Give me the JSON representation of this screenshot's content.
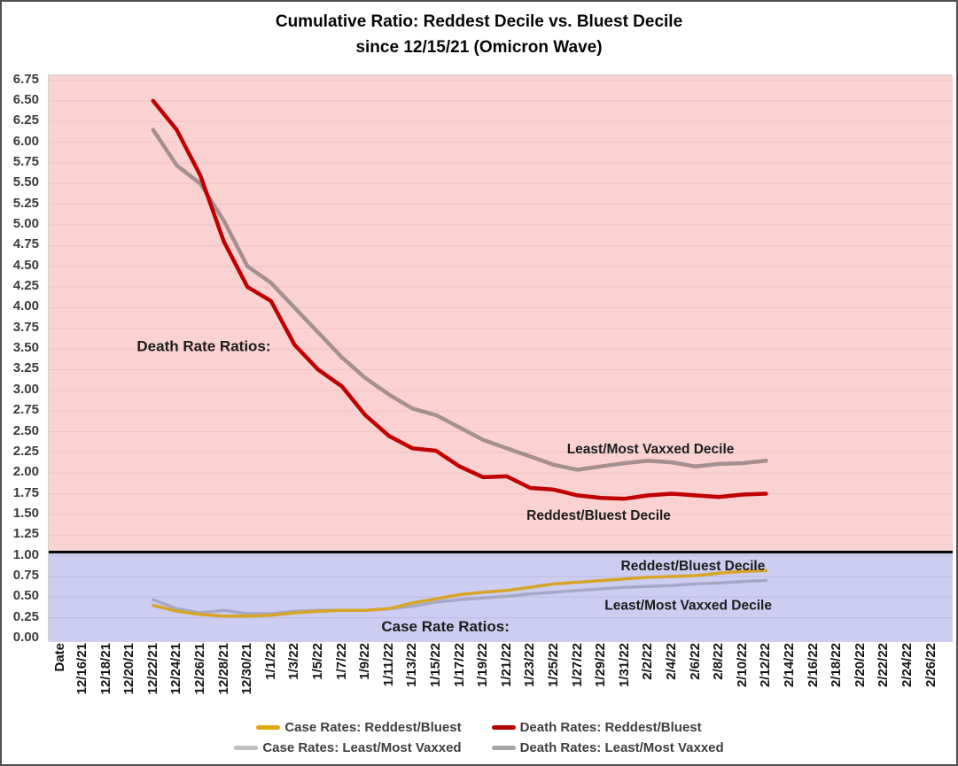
{
  "title": {
    "line1": "Cumulative Ratio: Reddest Decile vs. Bluest Decile",
    "line2": "since 12/15/21 (Omicron Wave)"
  },
  "colors": {
    "region_above_1_pink": "#FAD2D2",
    "region_below_1_blue": "#CDCDF2",
    "gridline_pink_region": "#F1C3C4",
    "gridline_blue_region": "#BCBCDE",
    "reference_line_black": "#000000",
    "death_reddest_bluest": "#C00000",
    "death_least_most_vaxxed": "#A59090",
    "case_reddest_bluest": "#D9A427",
    "case_least_most_vaxxed": "#A7A7C6",
    "legend_case_silver_swatch": "#BFBFBF",
    "legend_death_gray_swatch": "#A6A6A6",
    "legend_red_swatch": "#B00000",
    "legend_gold_swatch": "#E2A70C"
  },
  "chart_data": {
    "type": "line",
    "title": "Cumulative Ratio: Reddest Decile vs. Bluest Decile since 12/15/21 (Omicron Wave)",
    "ylim": [
      0,
      6.75
    ],
    "ytick_step": 0.25,
    "grid": true,
    "legend_position": "bottom",
    "reference_line_value": 1.0,
    "x_tick_labels": [
      "Date",
      "12/16/21",
      "12/18/21",
      "12/20/21",
      "12/22/21",
      "12/24/21",
      "12/26/21",
      "12/28/21",
      "12/30/21",
      "1/1/22",
      "1/3/22",
      "1/5/22",
      "1/7/22",
      "1/9/22",
      "1/11/22",
      "1/13/22",
      "1/15/22",
      "1/17/22",
      "1/19/22",
      "1/21/22",
      "1/23/22",
      "1/25/22",
      "1/27/22",
      "1/29/22",
      "1/31/22",
      "2/2/22",
      "2/4/22",
      "2/6/22",
      "2/8/22",
      "2/10/22",
      "2/12/22",
      "2/14/22",
      "2/16/22",
      "2/18/22",
      "2/20/22",
      "2/22/22",
      "2/24/22",
      "2/26/22"
    ],
    "dates": [
      "12/22/21",
      "12/24/21",
      "12/26/21",
      "12/28/21",
      "12/30/21",
      "1/1/22",
      "1/3/22",
      "1/5/22",
      "1/7/22",
      "1/9/22",
      "1/11/22",
      "1/13/22",
      "1/15/22",
      "1/17/22",
      "1/19/22",
      "1/21/22",
      "1/23/22",
      "1/25/22",
      "1/27/22",
      "1/29/22",
      "1/31/22",
      "2/2/22",
      "2/4/22",
      "2/6/22",
      "2/8/22",
      "2/10/22",
      "2/12/22"
    ],
    "series": [
      {
        "name": "Death Rates: Least/Most Vaxxed",
        "color_key": "death_least_most_vaxxed",
        "width": 4.5,
        "values": [
          6.15,
          5.72,
          5.5,
          5.05,
          4.5,
          4.3,
          4.0,
          3.7,
          3.4,
          3.15,
          2.95,
          2.78,
          2.7,
          2.55,
          2.4,
          2.3,
          2.2,
          2.1,
          2.04,
          2.08,
          2.12,
          2.15,
          2.13,
          2.08,
          2.11,
          2.12,
          2.15
        ]
      },
      {
        "name": "Death Rates: Reddest/Bluest",
        "color_key": "death_reddest_bluest",
        "width": 4.5,
        "values": [
          6.5,
          6.15,
          5.6,
          4.8,
          4.25,
          4.08,
          3.55,
          3.25,
          3.05,
          2.7,
          2.45,
          2.3,
          2.27,
          2.08,
          1.95,
          1.96,
          1.82,
          1.8,
          1.73,
          1.7,
          1.69,
          1.73,
          1.75,
          1.73,
          1.71,
          1.74,
          1.75
        ]
      },
      {
        "name": "Case Rates: Least/Most Vaxxed",
        "color_key": "case_least_most_vaxxed",
        "width": 3.5,
        "values": [
          0.47,
          0.36,
          0.31,
          0.34,
          0.3,
          0.3,
          0.33,
          0.34,
          0.34,
          0.34,
          0.36,
          0.39,
          0.44,
          0.47,
          0.49,
          0.51,
          0.54,
          0.56,
          0.58,
          0.6,
          0.62,
          0.63,
          0.64,
          0.66,
          0.67,
          0.69,
          0.7
        ]
      },
      {
        "name": "Case Rates: Reddest/Bluest",
        "color_key": "case_reddest_bluest",
        "width": 3.5,
        "values": [
          0.4,
          0.33,
          0.29,
          0.27,
          0.27,
          0.28,
          0.31,
          0.33,
          0.34,
          0.34,
          0.36,
          0.43,
          0.48,
          0.53,
          0.56,
          0.58,
          0.62,
          0.66,
          0.68,
          0.7,
          0.72,
          0.74,
          0.75,
          0.76,
          0.79,
          0.81,
          0.82
        ]
      }
    ],
    "annotations": [
      {
        "text": "Death Rate Ratios:",
        "t": 5.15,
        "v": 3.54,
        "kind": "section"
      },
      {
        "text": "Least/Most Vaxxed Decile",
        "t": 24.1,
        "v": 2.3,
        "kind": "series"
      },
      {
        "text": "Reddest/Bluest Decile",
        "t": 21.9,
        "v": 1.5,
        "kind": "series"
      },
      {
        "text": "Reddest/Bluest Decile",
        "t": 25.9,
        "v": 0.89,
        "kind": "series"
      },
      {
        "text": "Least/Most Vaxxed Decile",
        "t": 25.7,
        "v": 0.41,
        "kind": "series"
      },
      {
        "text": "Case Rate Ratios:",
        "t": 15.4,
        "v": 0.15,
        "kind": "section"
      }
    ],
    "legend_rows": [
      [
        {
          "label": "Case Rates: Reddest/Bluest",
          "color_key": "legend_gold_swatch"
        },
        {
          "label": "Death Rates: Reddest/Bluest",
          "color_key": "legend_red_swatch"
        }
      ],
      [
        {
          "label": "Case Rates: Least/Most Vaxxed",
          "color_key": "legend_case_silver_swatch"
        },
        {
          "label": "Death Rates: Least/Most Vaxxed",
          "color_key": "legend_death_gray_swatch"
        }
      ]
    ]
  }
}
